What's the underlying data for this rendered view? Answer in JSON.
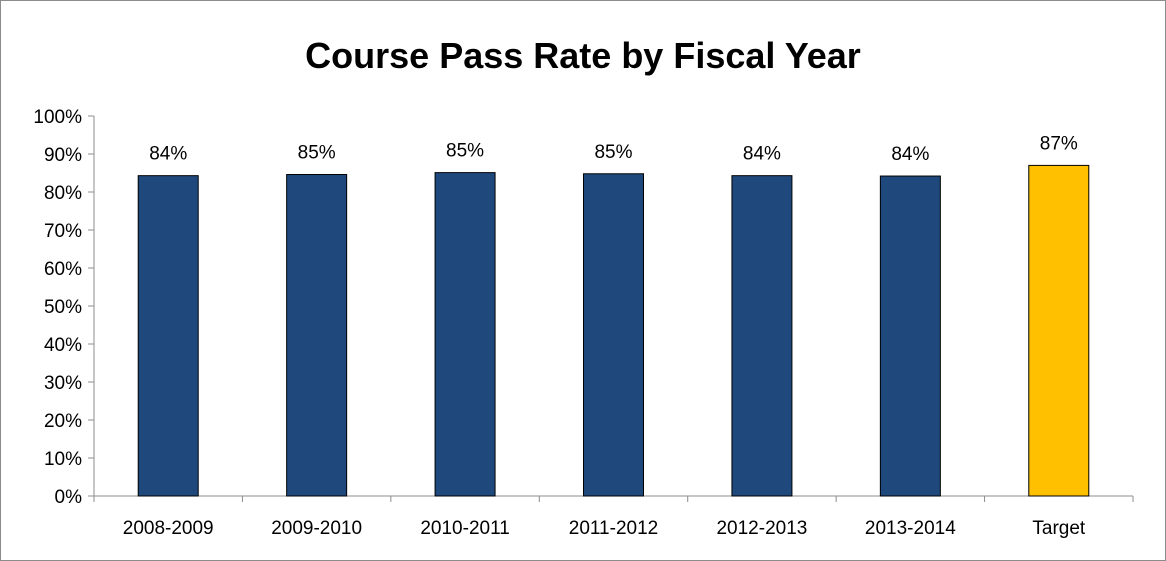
{
  "chart_data": {
    "type": "bar",
    "title": "Course Pass Rate by Fiscal Year",
    "xlabel": "",
    "ylabel": "",
    "ylim": [
      0,
      100
    ],
    "yticks": [
      "0%",
      "10%",
      "20%",
      "30%",
      "40%",
      "50%",
      "60%",
      "70%",
      "80%",
      "90%",
      "100%"
    ],
    "categories": [
      "2008-2009",
      "2009-2010",
      "2010-2011",
      "2011-2012",
      "2012-2013",
      "2013-2014",
      "Target"
    ],
    "values": [
      84.3,
      84.6,
      85.1,
      84.8,
      84.3,
      84.2,
      87
    ],
    "data_labels": [
      "84%",
      "85%",
      "85%",
      "85%",
      "84%",
      "84%",
      "87%"
    ],
    "colors": [
      "#1f497d",
      "#1f497d",
      "#1f497d",
      "#1f497d",
      "#1f497d",
      "#1f497d",
      "#ffc000"
    ],
    "grid": false,
    "legend": "none"
  }
}
